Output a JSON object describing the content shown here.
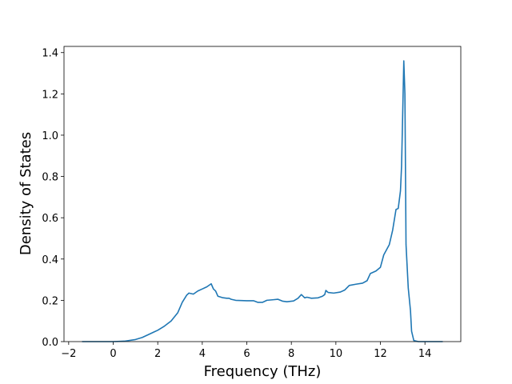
{
  "chart_data": {
    "type": "line",
    "x_label": "Frequency (THz)",
    "y_label": "Density of States",
    "x": [
      -1.4,
      0,
      0.5,
      1.0,
      1.3,
      1.6,
      1.8,
      2.0,
      2.3,
      2.6,
      2.9,
      3.1,
      3.3,
      3.4,
      3.6,
      3.8,
      4.0,
      4.2,
      4.4,
      4.5,
      4.6,
      4.7,
      4.9,
      5.1,
      5.2,
      5.3,
      5.5,
      6.0,
      6.3,
      6.5,
      6.7,
      6.9,
      7.2,
      7.4,
      7.6,
      7.8,
      8.1,
      8.3,
      8.45,
      8.6,
      8.7,
      8.9,
      9.2,
      9.4,
      9.5,
      9.55,
      9.65,
      9.9,
      10.2,
      10.4,
      10.6,
      10.9,
      11.2,
      11.4,
      11.55,
      11.8,
      12.0,
      12.15,
      12.4,
      12.55,
      12.7,
      12.8,
      12.9,
      12.95,
      13.0,
      13.05,
      13.1,
      13.15,
      13.25,
      13.35,
      13.4,
      13.5,
      13.7,
      14.8
    ],
    "values": [
      0,
      0,
      0.002,
      0.01,
      0.02,
      0.035,
      0.045,
      0.055,
      0.075,
      0.1,
      0.14,
      0.19,
      0.225,
      0.235,
      0.23,
      0.245,
      0.255,
      0.265,
      0.28,
      0.255,
      0.245,
      0.22,
      0.213,
      0.21,
      0.21,
      0.205,
      0.2,
      0.198,
      0.198,
      0.19,
      0.19,
      0.2,
      0.203,
      0.205,
      0.196,
      0.193,
      0.197,
      0.21,
      0.228,
      0.212,
      0.215,
      0.21,
      0.212,
      0.22,
      0.228,
      0.248,
      0.238,
      0.235,
      0.24,
      0.25,
      0.272,
      0.278,
      0.283,
      0.295,
      0.33,
      0.342,
      0.36,
      0.42,
      0.47,
      0.54,
      0.64,
      0.645,
      0.73,
      0.85,
      1.1,
      1.36,
      1.2,
      0.47,
      0.26,
      0.15,
      0.05,
      0.005,
      0,
      0
    ],
    "color": "#1f77b4",
    "xlim": [
      -2.21,
      15.61
    ],
    "xticks": [
      {
        "value": -2,
        "label": "−2"
      },
      0,
      2,
      4,
      6,
      8,
      10,
      12,
      14
    ],
    "ylim": [
      0,
      1.43
    ],
    "yticks": [
      {
        "value": 0,
        "label": "0.0"
      },
      0.2,
      0.4,
      0.6,
      0.8,
      {
        "value": 1,
        "label": "1.0"
      },
      1.2,
      1.4
    ],
    "grid": false
  }
}
